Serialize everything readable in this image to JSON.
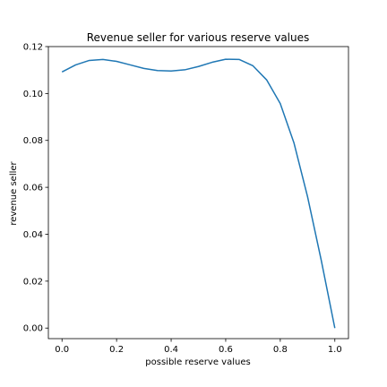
{
  "chart_data": {
    "type": "line",
    "title": "Revenue seller for various reserve values",
    "xlabel": "possible reserve values",
    "ylabel": "revenue seller",
    "xlim": [
      -0.05,
      1.05
    ],
    "ylim": [
      -0.0045,
      0.12
    ],
    "x_ticks": [
      0.0,
      0.2,
      0.4,
      0.6,
      0.8,
      1.0
    ],
    "x_tick_labels": [
      "0.0",
      "0.2",
      "0.4",
      "0.6",
      "0.8",
      "1.0"
    ],
    "y_ticks": [
      0.0,
      0.02,
      0.04,
      0.06,
      0.08,
      0.1,
      0.12
    ],
    "y_tick_labels": [
      "0.00",
      "0.02",
      "0.04",
      "0.06",
      "0.08",
      "0.10",
      "0.12"
    ],
    "grid": false,
    "series": [
      {
        "color": "#1f77b4",
        "x": [
          0.0,
          0.05,
          0.1,
          0.15,
          0.2,
          0.25,
          0.3,
          0.35,
          0.4,
          0.45,
          0.5,
          0.55,
          0.6,
          0.65,
          0.7,
          0.75,
          0.8,
          0.85,
          0.9,
          0.95,
          1.0
        ],
        "y": [
          0.1092,
          0.1122,
          0.1141,
          0.1145,
          0.1137,
          0.1122,
          0.1107,
          0.1098,
          0.1096,
          0.1101,
          0.1115,
          0.1133,
          0.1146,
          0.1145,
          0.1118,
          0.1058,
          0.0957,
          0.079,
          0.056,
          0.029,
          0.0
        ]
      }
    ]
  }
}
